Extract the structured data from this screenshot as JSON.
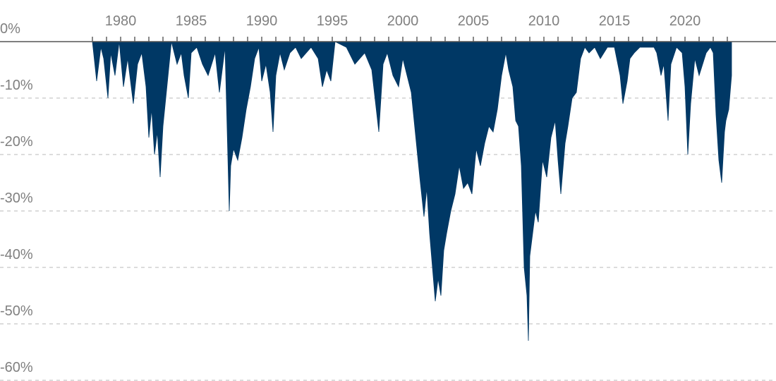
{
  "chart_data": {
    "type": "area",
    "title": "",
    "xlabel": "",
    "ylabel": "",
    "series": [
      {
        "color": "#003865",
        "x": [
          1978.0,
          1978.3,
          1978.6,
          1978.8,
          1979.1,
          1979.3,
          1979.6,
          1979.9,
          1980.2,
          1980.5,
          1980.9,
          1981.2,
          1981.5,
          1981.8,
          1982.0,
          1982.2,
          1982.4,
          1982.6,
          1982.8,
          1983.0,
          1983.6,
          1984.0,
          1984.3,
          1984.5,
          1984.8,
          1985.0,
          1985.4,
          1985.8,
          1986.2,
          1986.7,
          1987.0,
          1987.4,
          1987.7,
          1987.8,
          1988.0,
          1988.3,
          1988.6,
          1988.9,
          1989.2,
          1989.5,
          1989.8,
          1990.0,
          1990.3,
          1990.6,
          1990.8,
          1991.0,
          1991.3,
          1991.6,
          1992.0,
          1992.4,
          1992.8,
          1993.5,
          1994.0,
          1994.3,
          1994.6,
          1994.9,
          1995.2,
          1996.0,
          1996.6,
          1997.3,
          1997.8,
          1998.3,
          1998.6,
          1998.9,
          1999.3,
          1999.7,
          2000.0,
          2000.3,
          2000.6,
          2000.8,
          2001.0,
          2001.2,
          2001.5,
          2001.7,
          2001.9,
          2002.1,
          2002.3,
          2002.5,
          2002.7,
          2002.9,
          2003.1,
          2003.4,
          2003.7,
          2004.0,
          2004.3,
          2004.6,
          2004.9,
          2005.2,
          2005.5,
          2005.8,
          2006.1,
          2006.4,
          2006.7,
          2007.0,
          2007.3,
          2007.5,
          2007.8,
          2008.0,
          2008.2,
          2008.4,
          2008.6,
          2008.8,
          2008.9,
          2009.0,
          2009.2,
          2009.4,
          2009.6,
          2009.9,
          2010.2,
          2010.5,
          2010.8,
          2011.0,
          2011.2,
          2011.5,
          2011.7,
          2012.0,
          2012.3,
          2012.6,
          2012.9,
          2013.2,
          2013.6,
          2014.0,
          2014.5,
          2015.0,
          2015.4,
          2015.6,
          2015.9,
          2016.1,
          2016.4,
          2016.8,
          2017.3,
          2017.8,
          2018.0,
          2018.3,
          2018.5,
          2018.8,
          2019.0,
          2019.4,
          2019.8,
          2020.0,
          2020.2,
          2020.4,
          2020.7,
          2021.0,
          2021.5,
          2021.8,
          2022.0,
          2022.2,
          2022.4,
          2022.6,
          2022.8,
          2022.9,
          2023.1,
          2023.3
        ],
        "y": [
          0,
          -7,
          -1,
          -3,
          -10,
          -2,
          -6,
          0,
          -8,
          -3,
          -11,
          -4,
          -2,
          -8,
          -17,
          -12,
          -20,
          -16,
          -24,
          -15,
          0,
          -4,
          -2,
          -6,
          -10,
          -2,
          -1,
          -4,
          -6,
          -2,
          -9,
          -1,
          -30,
          -22,
          -19,
          -21,
          -17,
          -12,
          -8,
          -3,
          -1,
          -7,
          -4,
          -9,
          -16,
          -6,
          -2,
          -5,
          -2,
          -1,
          -3,
          -1,
          -3,
          -8,
          -5,
          -7,
          0,
          -1,
          -4,
          -2,
          -5,
          -16,
          -4,
          -2,
          -6,
          -8,
          -3,
          -6,
          -9,
          -14,
          -19,
          -24,
          -31,
          -26,
          -34,
          -40,
          -46,
          -42,
          -45,
          -37,
          -34,
          -30,
          -27,
          -22,
          -26,
          -25,
          -27,
          -19,
          -22,
          -18,
          -15,
          -16,
          -12,
          -6,
          -2,
          -5,
          -8,
          -14,
          -15,
          -22,
          -40,
          -45,
          -53,
          -38,
          -34,
          -30,
          -32,
          -21,
          -24,
          -17,
          -14,
          -21,
          -27,
          -18,
          -15,
          -10,
          -9,
          -3,
          -1,
          -2,
          -1,
          -3,
          -1,
          -1,
          -6,
          -11,
          -7,
          -3,
          -2,
          -1,
          -1,
          -1,
          -2,
          -6,
          -4,
          -14,
          -4,
          -1,
          -2,
          -8,
          -20,
          -11,
          -3,
          -6,
          -2,
          -1,
          -2,
          -13,
          -21,
          -25,
          -16,
          -14,
          -12,
          -6
        ]
      }
    ],
    "xlim": [
      1976.0,
      2028.0
    ],
    "ylim": [
      -60,
      0
    ],
    "xticks": [
      "1980",
      "1985",
      "1990",
      "1995",
      "2000",
      "2005",
      "2010",
      "2015",
      "2020"
    ],
    "yticks": [
      "0%",
      "-10%",
      "-20%",
      "-30%",
      "-40%",
      "-50%",
      "-60%"
    ],
    "grid": true
  }
}
